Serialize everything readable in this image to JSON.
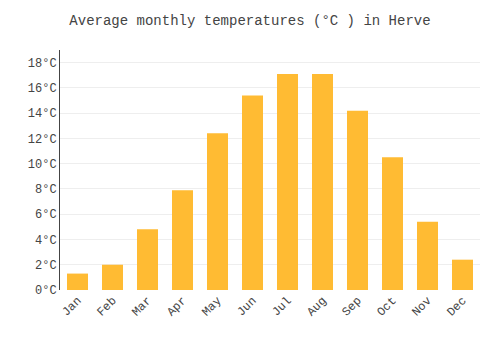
{
  "chart_data": {
    "type": "bar",
    "title": "Average monthly temperatures (°C ) in Herve",
    "categories": [
      "Jan",
      "Feb",
      "Mar",
      "Apr",
      "May",
      "Jun",
      "Jul",
      "Aug",
      "Sep",
      "Oct",
      "Nov",
      "Dec"
    ],
    "values": [
      1.3,
      2.0,
      4.8,
      7.9,
      12.4,
      15.4,
      17.1,
      17.1,
      14.2,
      10.5,
      5.4,
      2.4
    ],
    "color": "#FFBB33",
    "ylim": [
      0,
      19
    ],
    "yticks": [
      {
        "value": 0,
        "label": "0°C"
      },
      {
        "value": 2,
        "label": "2°C"
      },
      {
        "value": 4,
        "label": "4°C"
      },
      {
        "value": 6,
        "label": "6°C"
      },
      {
        "value": 8,
        "label": "8°C"
      },
      {
        "value": 10,
        "label": "10°C"
      },
      {
        "value": 12,
        "label": "12°C"
      },
      {
        "value": 14,
        "label": "14°C"
      },
      {
        "value": 16,
        "label": "16°C"
      },
      {
        "value": 18,
        "label": "18°C"
      }
    ],
    "grid": true
  }
}
